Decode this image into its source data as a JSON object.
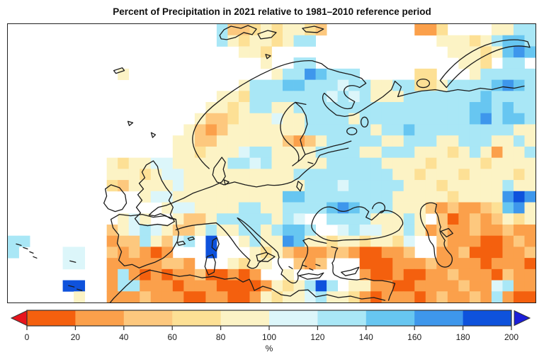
{
  "title": "Percent of Precipitation in 2021 relative to 1981–2010 reference period",
  "chart_data": {
    "type": "heatmap",
    "title": "Percent of Precipitation in 2021 relative to 1981–2010 reference period",
    "area_depicted": "Europe with surrounding North Atlantic, North Africa, Middle East and western Russia",
    "legend_position": "bottom",
    "colorbar": {
      "tick_labels": [
        "0",
        "20",
        "40",
        "60",
        "80",
        "100",
        "120",
        "140",
        "160",
        "180",
        "200"
      ],
      "bin_edges": [
        0,
        20,
        40,
        60,
        80,
        100,
        120,
        140,
        160,
        180,
        200
      ],
      "unit_label": "%",
      "segment_colors": [
        "#f4600e",
        "#fba04b",
        "#fdc87e",
        "#fde095",
        "#fcf3c5",
        "#dcf6fa",
        "#a9e7f6",
        "#67c6f1",
        "#3e97ec",
        "#0e52dc"
      ],
      "underflow_arrow_color": "#e8141c",
      "overflow_arrow_color": "#1b1ed8",
      "outline_color": "#333333",
      "tick_color": "#333333",
      "label_color": "#1a1a1a"
    },
    "grid": {
      "cols": 48,
      "rows": 25,
      "no_data_char": ".",
      "palette": {
        ".": "#ffffff",
        "a": "#f4600e",
        "b": "#fba04b",
        "c": "#fdc87e",
        "d": "#fde095",
        "e": "#fcf3c5",
        "f": "#dcf6fa",
        "g": "#a9e7f6",
        "h": "#67c6f1",
        "i": "#3e97ec",
        "j": "#0e52dc"
      },
      "cell_rows": [
        "...................gccdedeedc........bbd....eegg",
        "...................gedeedegg...........eeedeghhg",
        ".....................eed................eeedehih",
        ".......................e..gg.............eed.gg.",
        "..........e.............eggihggg.....dd...eggggg",
        ".....................eggghhgggfggeeggddegggghihg",
        "...................eedgggggggfgfgeeeggggggghgggg",
        "..................eedeggeegggggggggggggggghhghgg",
        ".................eccdeeefeeggggegggggggggghighhg",
        "................ecbceeeeeeeggggggegghgggggggggee",
        "...............eecceeeeeecbcegggggeegggeegggeege",
        "...............eedeeefggeeeeggggeegggeeedegebeeg",
        ".........edeeffeeeeeggfgeeeeegggggeeeedeeeedeeee",
        ".........eeedeffeeeeeeeeeegggggggggeedeeedeeeede",
        ".........dceeeefeeeeeeeeeeegggfgggggeeedeeeeegee",
        "............effeeeeeeeeeehhggggggggeeeeedeeeeiji",
        "..............effeeeeggeegggghihgggeeecbcbbcdhie",
        "..........efe..eccegggggegf..ggggeeege.cabcbcede",
        ".........cefgfeccegeeggeghhg..fgffeegebcbbcbbcbb",
        "gg.......bccgecfg.j..egeeiheedeedeedf..cbbbaabcb",
        "g....ff..cbcbab...j...edecbbbccbaabbc..bbcaaabbc",
        ".....ff..bbbbbccb...edee..cbc...aaabbbcbbbbabbba",
        ".........bgbababbcaabab..e......baabaabbcbbbacbb",
        ".....jj..bggbbbabbbaaaabedegjg.eebbaabbbbcbbfgbb",
        "......e..bbbcbbbaabbaabedeefgeedbabbbabcbbcbgbaa"
      ]
    }
  }
}
